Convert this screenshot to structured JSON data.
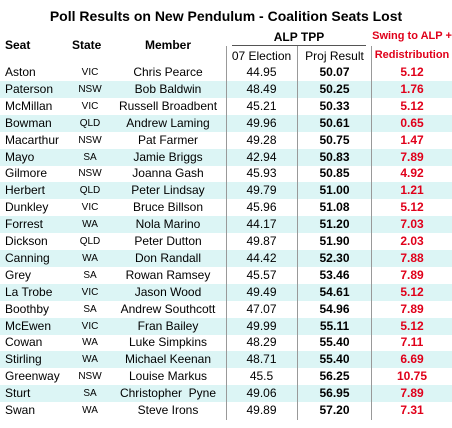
{
  "title": "Poll Results on New Pendulum - Coalition Seats Lost",
  "columns": {
    "seat": "Seat",
    "state": "State",
    "member": "Member",
    "alp_tpp": "ALP TPP",
    "election": "07 Election",
    "proj": "Proj Result",
    "swing": [
      "Swing to ALP +",
      "Redistribution"
    ]
  },
  "rows": [
    [
      "Aston",
      "VIC",
      "Chris Pearce",
      "44.95",
      "50.07",
      "5.12"
    ],
    [
      "Paterson",
      "NSW",
      "Bob Baldwin",
      "48.49",
      "50.25",
      "1.76"
    ],
    [
      "McMillan",
      "VIC",
      "Russell Broadbent",
      "45.21",
      "50.33",
      "5.12"
    ],
    [
      "Bowman",
      "QLD",
      "Andrew Laming",
      "49.96",
      "50.61",
      "0.65"
    ],
    [
      "Macarthur",
      "NSW",
      "Pat Farmer",
      "49.28",
      "50.75",
      "1.47"
    ],
    [
      "Mayo",
      "SA",
      "Jamie Briggs",
      "42.94",
      "50.83",
      "7.89"
    ],
    [
      "Gilmore",
      "NSW",
      "Joanna Gash",
      "45.93",
      "50.85",
      "4.92"
    ],
    [
      "Herbert",
      "QLD",
      "Peter Lindsay",
      "49.79",
      "51.00",
      "1.21"
    ],
    [
      "Dunkley",
      "VIC",
      "Bruce Billson",
      "45.96",
      "51.08",
      "5.12"
    ],
    [
      "Forrest",
      "WA",
      "Nola Marino",
      "44.17",
      "51.20",
      "7.03"
    ],
    [
      "Dickson",
      "QLD",
      "Peter Dutton",
      "49.87",
      "51.90",
      "2.03"
    ],
    [
      "Canning",
      "WA",
      "Don Randall",
      "44.42",
      "52.30",
      "7.88"
    ],
    [
      "Grey",
      "SA",
      "Rowan Ramsey",
      "45.57",
      "53.46",
      "7.89"
    ],
    [
      "La Trobe",
      "VIC",
      "Jason Wood",
      "49.49",
      "54.61",
      "5.12"
    ],
    [
      "Boothby",
      "SA",
      "Andrew Southcott",
      "47.07",
      "54.96",
      "7.89"
    ],
    [
      "McEwen",
      "VIC",
      "Fran Bailey",
      "49.99",
      "55.11",
      "5.12"
    ],
    [
      "Cowan",
      "WA",
      "Luke Simpkins",
      "48.29",
      "55.40",
      "7.11"
    ],
    [
      "Stirling",
      "WA",
      "Michael Keenan",
      "48.71",
      "55.40",
      "6.69"
    ],
    [
      "Greenway",
      "NSW",
      "Louise Markus",
      "45.5",
      "56.25",
      "10.75"
    ],
    [
      "Sturt",
      "SA",
      "Christopher  Pyne",
      "49.06",
      "56.95",
      "7.89"
    ],
    [
      "Swan",
      "WA",
      "Steve Irons",
      "49.89",
      "57.20",
      "7.31"
    ]
  ]
}
